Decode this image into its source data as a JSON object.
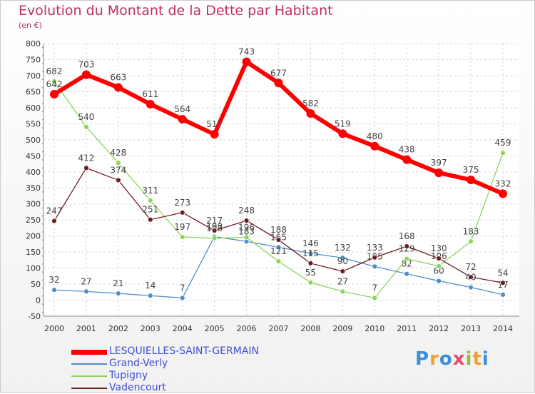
{
  "chart_data": {
    "type": "line",
    "title": "Evolution du Montant de la Dette par Habitant",
    "subtitle": "(en €)",
    "xlabel": "",
    "ylabel": "",
    "x": [
      "2000",
      "2001",
      "2002",
      "2003",
      "2004",
      "2005",
      "2006",
      "2007",
      "2008",
      "2009",
      "2010",
      "2011",
      "2012",
      "2013",
      "2014"
    ],
    "ylim": [
      -50,
      800
    ],
    "yticks": [
      "-50",
      "0",
      "50",
      "100",
      "150",
      "200",
      "250",
      "300",
      "350",
      "400",
      "450",
      "500",
      "550",
      "600",
      "650",
      "700",
      "750",
      "800"
    ],
    "grid": true,
    "legend_position": "bottom-left",
    "series": [
      {
        "name": "LESQUIELLES-SAINT-GERMAIN",
        "color": "#ff0000",
        "values": [
          642,
          703,
          663,
          611,
          564,
          517,
          743,
          677,
          582,
          519,
          480,
          438,
          397,
          375,
          332
        ]
      },
      {
        "name": "Grand-Verly",
        "color": "#4d8fcb",
        "values": [
          32,
          27,
          21,
          14,
          7,
          198,
          183,
          165,
          146,
          132,
          105,
          82,
          60,
          40,
          17
        ]
      },
      {
        "name": "Tupigny",
        "color": "#8fd45a",
        "values": [
          682,
          540,
          428,
          311,
          197,
          193,
          196,
          121,
          55,
          27,
          7,
          129,
          106,
          183,
          459
        ]
      },
      {
        "name": "Vadencourt",
        "color": "#6b1f25",
        "values": [
          247,
          412,
          374,
          251,
          273,
          217,
          248,
          188,
          115,
          90,
          133,
          168,
          130,
          72,
          54
        ]
      }
    ]
  },
  "logo": {
    "text": "Proxiti"
  }
}
